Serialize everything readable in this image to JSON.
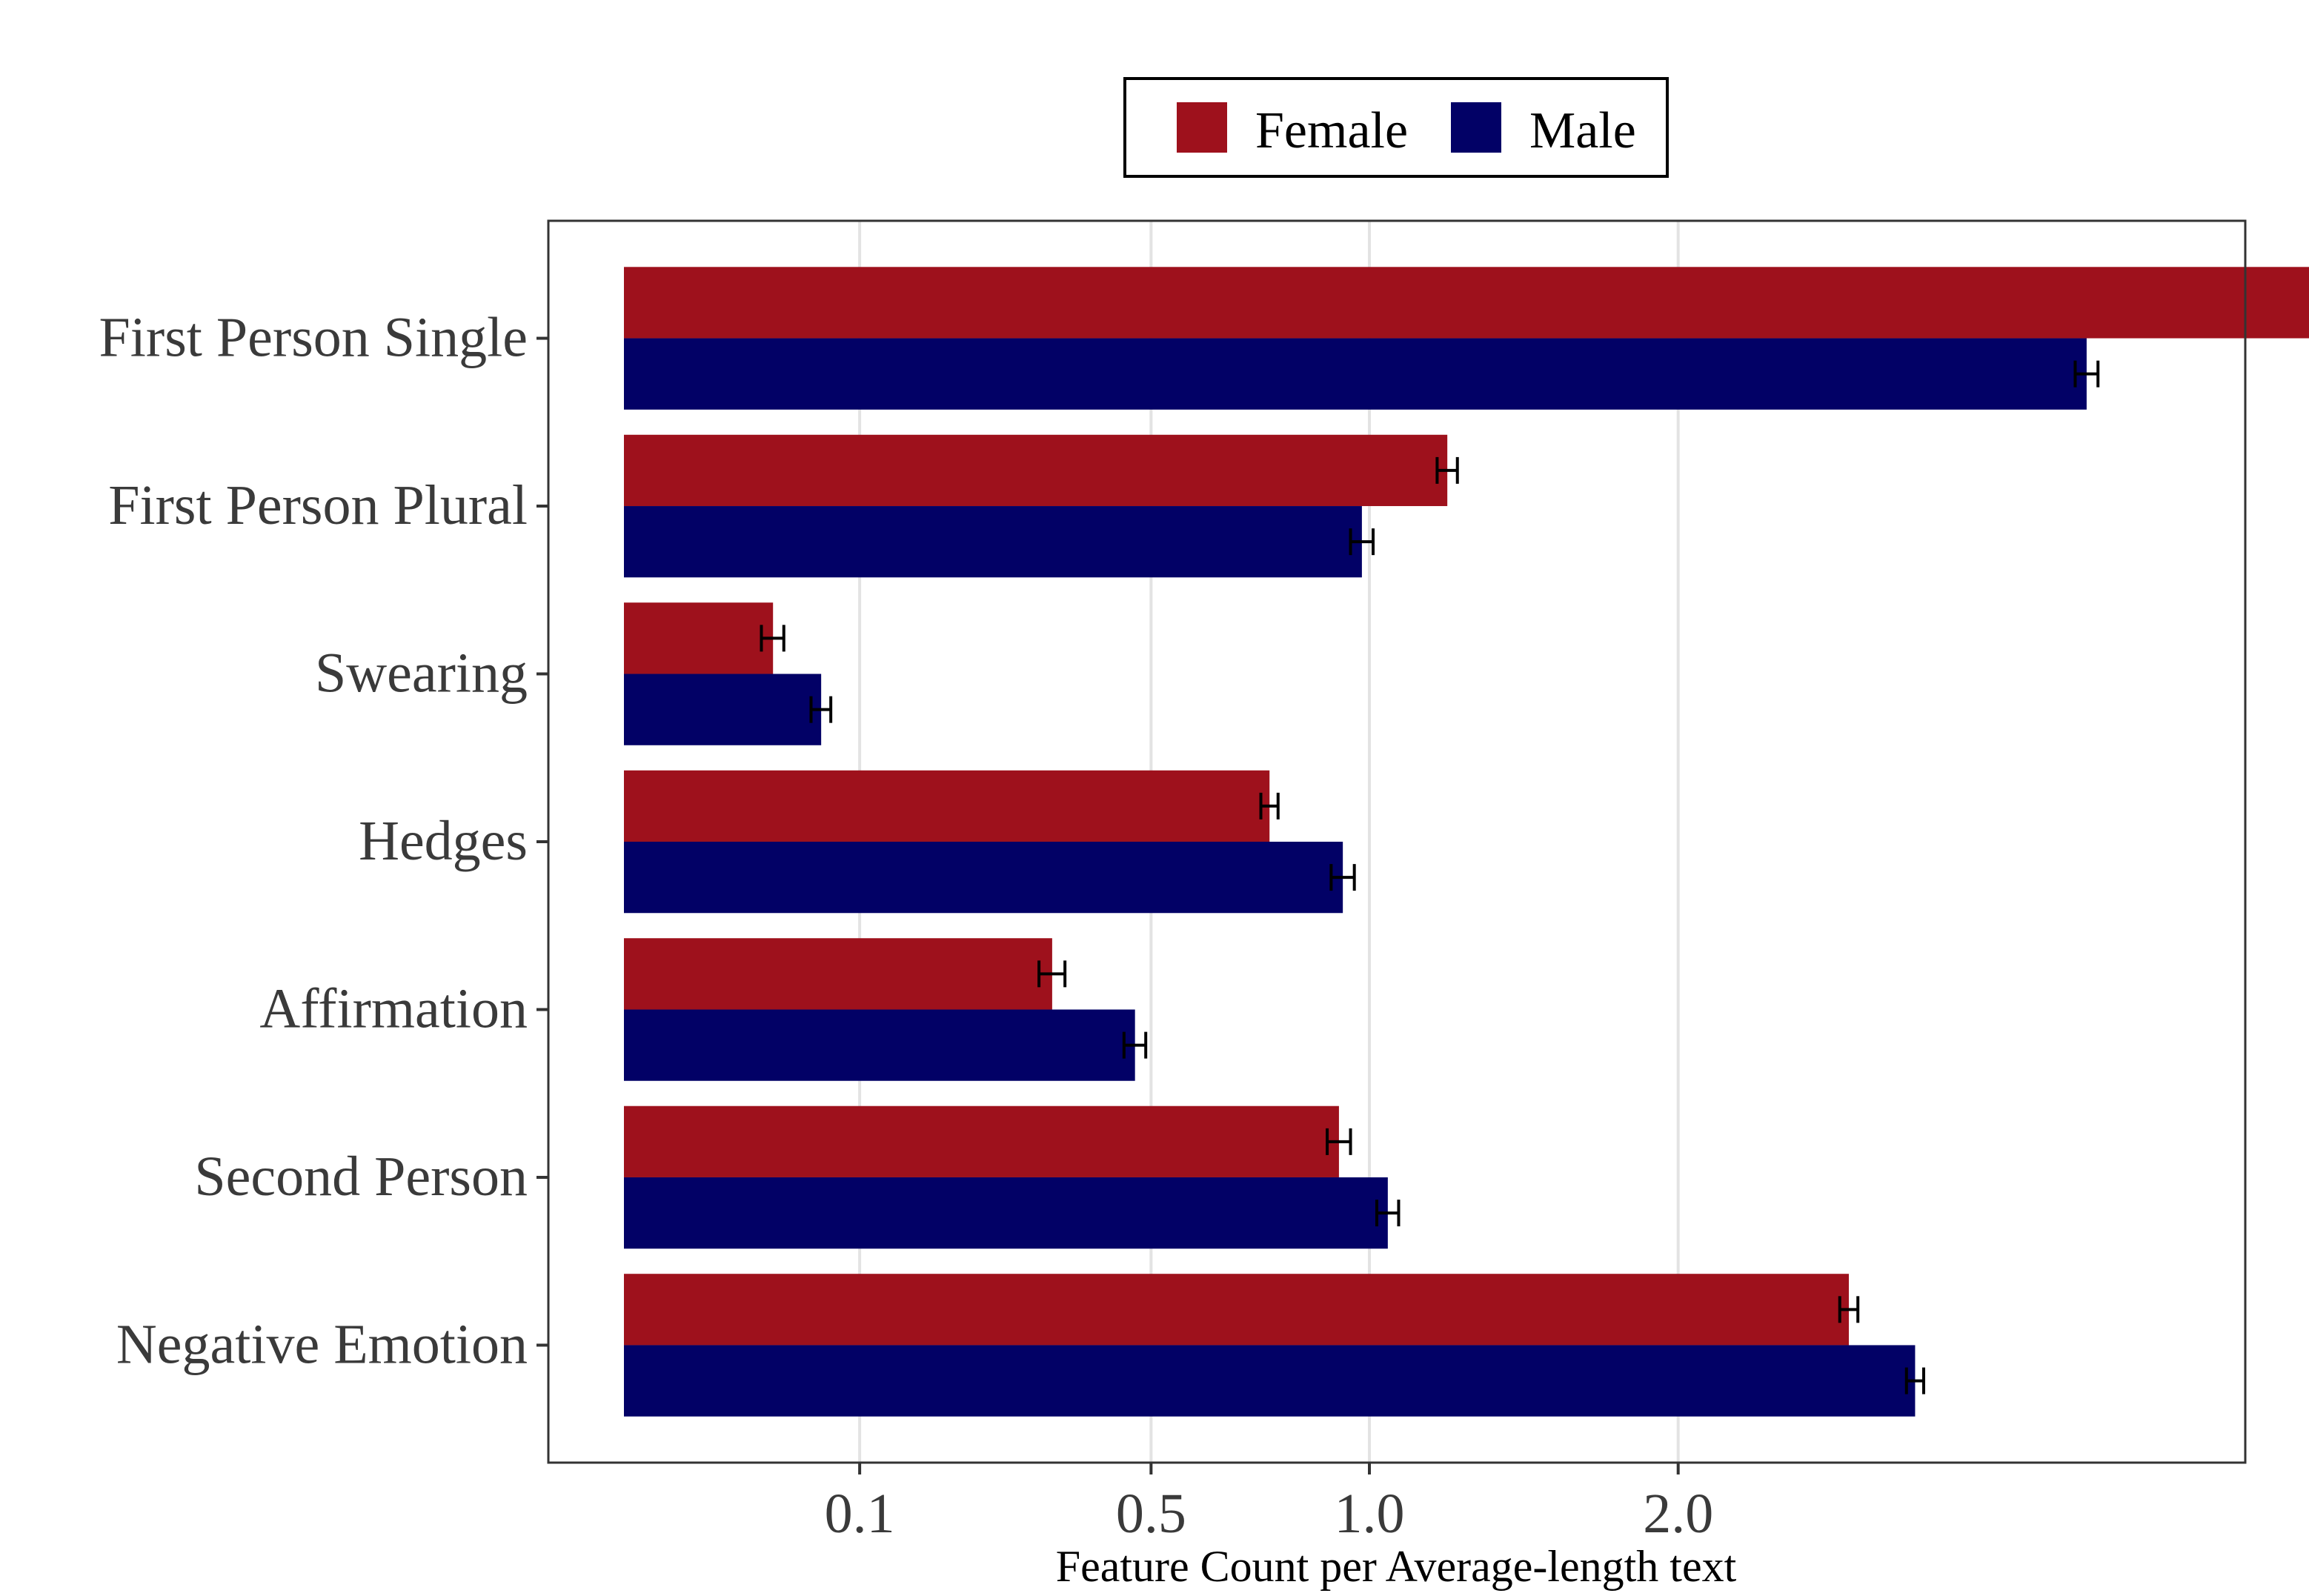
{
  "chart_data": {
    "type": "bar",
    "orientation": "horizontal",
    "categories": [
      "First Person Single",
      "First Person Plural",
      "Swearing",
      "Hedges",
      "Affirmation",
      "Second Person",
      "Negative Emotion"
    ],
    "series": [
      {
        "name": "Female",
        "color": "#9E111C",
        "values": [
          5.2,
          1.22,
          0.04,
          0.75,
          0.33,
          0.92,
          2.7
        ],
        "error": [
          0.06,
          0.03,
          0.006,
          0.02,
          0.02,
          0.03,
          0.04
        ]
      },
      {
        "name": "Male",
        "color": "#020166",
        "values": [
          3.85,
          0.98,
          0.07,
          0.93,
          0.47,
          1.05,
          3.0
        ],
        "error": [
          0.06,
          0.03,
          0.007,
          0.03,
          0.02,
          0.03,
          0.04
        ]
      }
    ],
    "x_ticks": [
      0.1,
      0.5,
      1.0,
      2.0
    ],
    "x_tick_labels": [
      "0.1",
      "0.5",
      "1.0",
      "2.0"
    ],
    "x_scale": "sqrt",
    "xlim": [
      0,
      5.6
    ],
    "xlabel": "Feature Count per Average-length text",
    "ylabel": "",
    "title": "",
    "grid": "vertical major gridlines",
    "legend": "top-center"
  }
}
